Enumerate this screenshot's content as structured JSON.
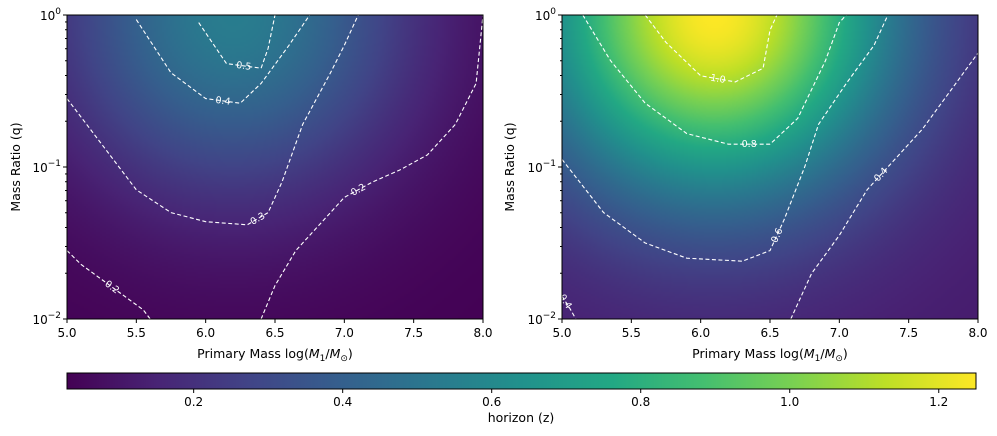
{
  "chart_data": [
    {
      "type": "heatmap",
      "title": "",
      "xlabel": "Primary Mass log(M_1/M_⊙)",
      "xlabel_parts": {
        "pre": "Primary Mass log(",
        "m": "M",
        "sub1": "1",
        "slash": "/",
        "m2": "M",
        "sub2": "⊙",
        "post": ")"
      },
      "ylabel": "Mass Ratio (q)",
      "xlim": [
        5.0,
        8.0
      ],
      "xticks": [
        5.0,
        5.5,
        6.0,
        6.5,
        7.0,
        7.5,
        8.0
      ],
      "xtick_labels": [
        "5.0",
        "5.5",
        "6.0",
        "6.5",
        "7.0",
        "7.5",
        "8.0"
      ],
      "ylim_log10": [
        -2,
        0
      ],
      "yscale": "log",
      "yticks_log10": [
        -2,
        -1,
        0
      ],
      "ytick_labels": [
        {
          "base": "10",
          "exp": "−2"
        },
        {
          "base": "10",
          "exp": "−1"
        },
        {
          "base": "10",
          "exp": "0"
        }
      ],
      "field": {
        "peak_x": 6.2,
        "peak_log_q": 0.0,
        "peak_value": 0.54,
        "low_corner_value": 0.03
      },
      "contours": [
        {
          "level": 0.2,
          "label": "0.2",
          "points": [
            [
              5.0,
              -1.55
            ],
            [
              5.1,
              -1.64
            ],
            [
              5.25,
              -1.74
            ],
            [
              5.4,
              -1.84
            ],
            [
              5.55,
              -1.94
            ],
            [
              5.6,
              -2.0
            ]
          ]
        },
        {
          "level": 0.2,
          "label": "0.2",
          "points": [
            [
              6.4,
              -2.0
            ],
            [
              6.5,
              -1.78
            ],
            [
              6.65,
              -1.55
            ],
            [
              6.8,
              -1.4
            ],
            [
              6.9,
              -1.3
            ],
            [
              7.0,
              -1.2
            ],
            [
              7.2,
              -1.1
            ],
            [
              7.4,
              -1.02
            ],
            [
              7.6,
              -0.92
            ],
            [
              7.8,
              -0.72
            ],
            [
              7.95,
              -0.45
            ],
            [
              8.0,
              0.0
            ]
          ]
        },
        {
          "level": 0.3,
          "label": "0.3",
          "points": [
            [
              5.0,
              -0.55
            ],
            [
              5.25,
              -0.85
            ],
            [
              5.5,
              -1.15
            ],
            [
              5.75,
              -1.3
            ],
            [
              6.0,
              -1.36
            ],
            [
              6.3,
              -1.38
            ],
            [
              6.45,
              -1.3
            ],
            [
              6.55,
              -1.1
            ],
            [
              6.7,
              -0.72
            ],
            [
              6.9,
              -0.38
            ],
            [
              7.0,
              -0.2
            ],
            [
              7.1,
              0.0
            ]
          ]
        },
        {
          "level": 0.4,
          "label": "0.4",
          "points": [
            [
              5.5,
              -0.03
            ],
            [
              5.75,
              -0.38
            ],
            [
              6.0,
              -0.55
            ],
            [
              6.25,
              -0.58
            ],
            [
              6.4,
              -0.45
            ],
            [
              6.6,
              -0.2
            ],
            [
              6.75,
              0.0
            ]
          ]
        },
        {
          "level": 0.5,
          "label": "0.5",
          "points": [
            [
              5.95,
              -0.05
            ],
            [
              6.15,
              -0.32
            ],
            [
              6.4,
              -0.35
            ],
            [
              6.45,
              -0.22
            ],
            [
              6.5,
              0.0
            ]
          ]
        }
      ]
    },
    {
      "type": "heatmap",
      "title": "",
      "xlabel": "Primary Mass log(M_1/M_⊙)",
      "xlabel_parts": {
        "pre": "Primary Mass log(",
        "m": "M",
        "sub1": "1",
        "slash": "/",
        "m2": "M",
        "sub2": "⊙",
        "post": ")"
      },
      "ylabel": "Mass Ratio (q)",
      "xlim": [
        5.0,
        8.0
      ],
      "xticks": [
        5.0,
        5.5,
        6.0,
        6.5,
        7.0,
        7.5,
        8.0
      ],
      "xtick_labels": [
        "5.0",
        "5.5",
        "6.0",
        "6.5",
        "7.0",
        "7.5",
        "8.0"
      ],
      "ylim_log10": [
        -2,
        0
      ],
      "yscale": "log",
      "yticks_log10": [
        -2,
        -1,
        0
      ],
      "ytick_labels": [
        {
          "base": "10",
          "exp": "−2"
        },
        {
          "base": "10",
          "exp": "−1"
        },
        {
          "base": "10",
          "exp": "0"
        }
      ],
      "field": {
        "peak_x": 6.1,
        "peak_log_q": 0.0,
        "peak_value": 1.25,
        "low_corner_value": 0.12
      },
      "contours": [
        {
          "level": 0.4,
          "label": "0.4",
          "points": [
            [
              5.0,
              -1.85
            ],
            [
              5.05,
              -1.92
            ],
            [
              5.1,
              -2.0
            ]
          ]
        },
        {
          "level": 0.4,
          "label": "0.4",
          "points": [
            [
              6.65,
              -2.0
            ],
            [
              6.8,
              -1.7
            ],
            [
              7.0,
              -1.45
            ],
            [
              7.2,
              -1.15
            ],
            [
              7.4,
              -0.95
            ],
            [
              7.6,
              -0.75
            ],
            [
              7.8,
              -0.5
            ],
            [
              8.0,
              -0.25
            ]
          ]
        },
        {
          "level": 0.6,
          "label": "0.6",
          "points": [
            [
              5.0,
              -0.95
            ],
            [
              5.3,
              -1.3
            ],
            [
              5.6,
              -1.5
            ],
            [
              5.9,
              -1.6
            ],
            [
              6.3,
              -1.62
            ],
            [
              6.5,
              -1.55
            ],
            [
              6.6,
              -1.35
            ],
            [
              6.75,
              -1.0
            ],
            [
              6.85,
              -0.72
            ],
            [
              7.05,
              -0.45
            ],
            [
              7.25,
              -0.2
            ],
            [
              7.35,
              0.0
            ]
          ]
        },
        {
          "level": 0.8,
          "label": "0.8",
          "points": [
            [
              5.15,
              0.0
            ],
            [
              5.35,
              -0.3
            ],
            [
              5.6,
              -0.58
            ],
            [
              5.9,
              -0.78
            ],
            [
              6.2,
              -0.85
            ],
            [
              6.5,
              -0.85
            ],
            [
              6.7,
              -0.68
            ],
            [
              6.9,
              -0.3
            ],
            [
              7.0,
              -0.05
            ],
            [
              7.05,
              0.0
            ]
          ]
        },
        {
          "level": 1.0,
          "label": "1.0",
          "points": [
            [
              5.6,
              0.0
            ],
            [
              5.75,
              -0.18
            ],
            [
              6.0,
              -0.4
            ],
            [
              6.25,
              -0.44
            ],
            [
              6.45,
              -0.35
            ],
            [
              6.5,
              -0.1
            ],
            [
              6.55,
              0.0
            ]
          ]
        }
      ]
    }
  ],
  "colorbar": {
    "label": "horizon (z)",
    "range": [
      0.03,
      1.25
    ],
    "ticks": [
      0.2,
      0.4,
      0.6,
      0.8,
      1.0,
      1.2
    ],
    "tick_labels": [
      "0.2",
      "0.4",
      "0.6",
      "0.8",
      "1.0",
      "1.2"
    ],
    "colormap": "viridis"
  }
}
